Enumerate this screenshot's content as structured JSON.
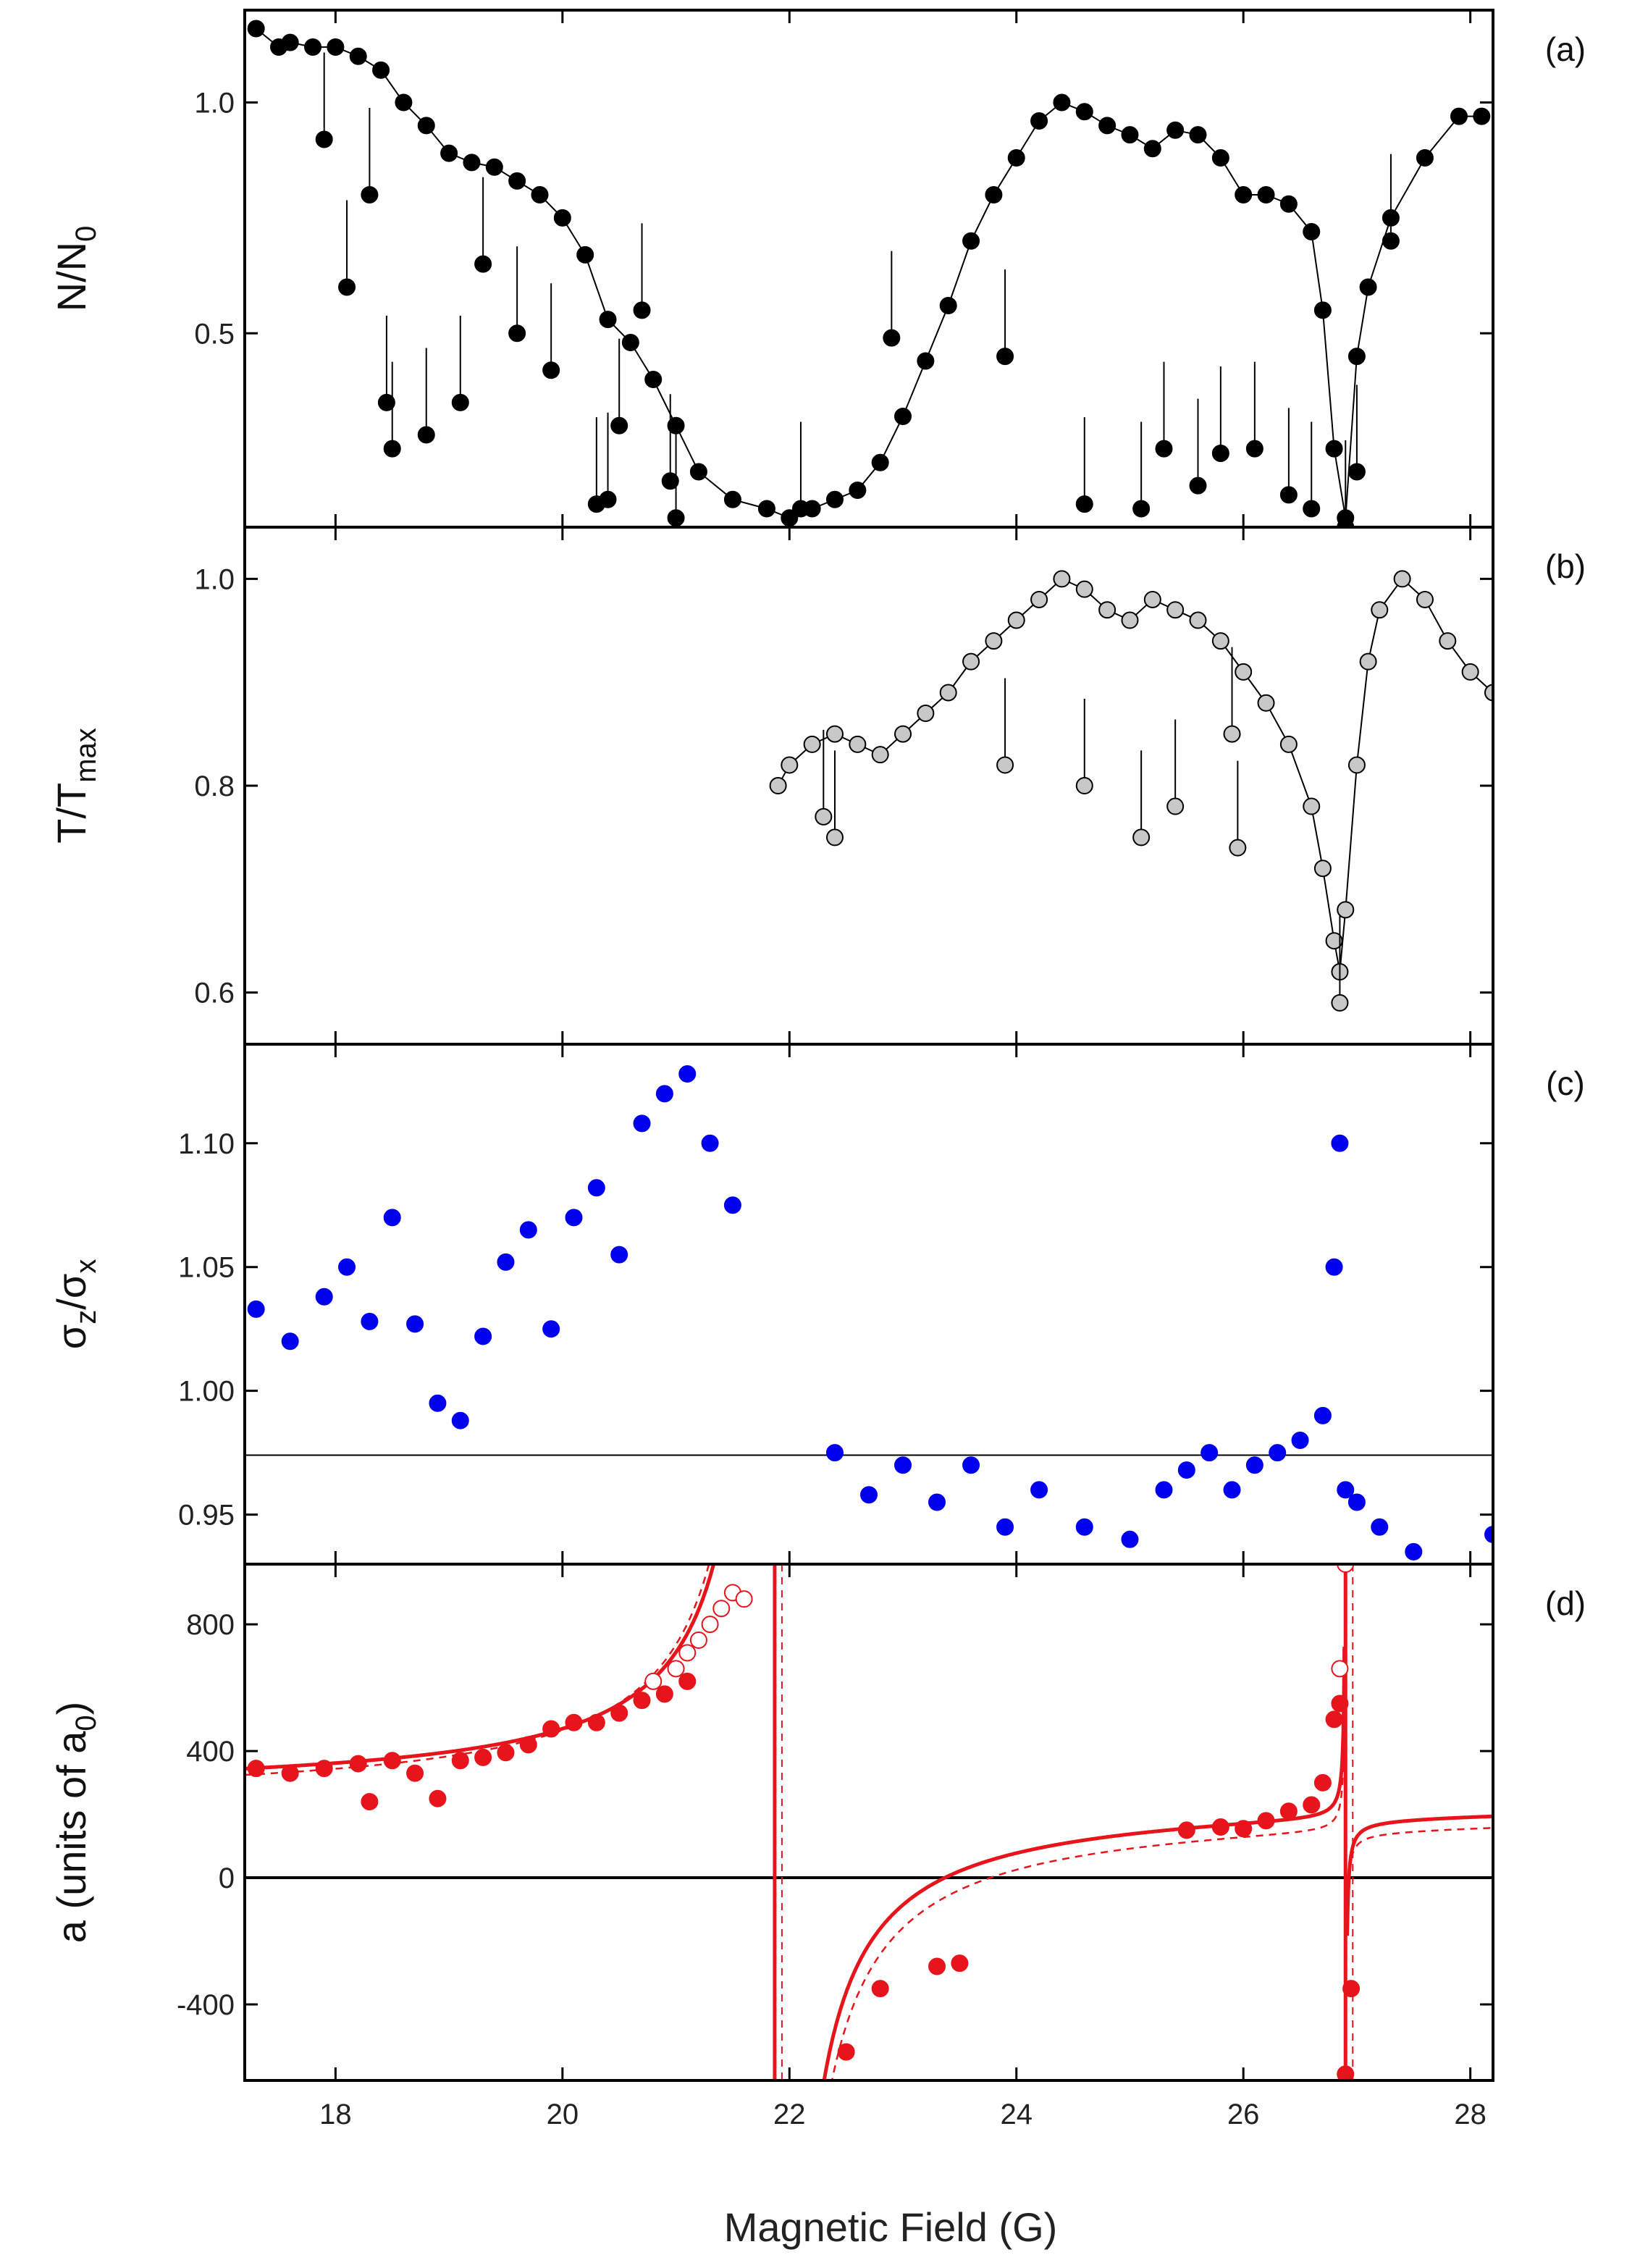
{
  "chart_data": {
    "type": "scatter",
    "xlabel": "Magnetic Field (G)",
    "xlim": [
      17.2,
      28.2
    ],
    "xticks": [
      18,
      20,
      22,
      24,
      26,
      28
    ],
    "xtick_labels": [
      "18",
      "20",
      "22",
      "24",
      "26",
      "28"
    ],
    "panels": [
      {
        "id": "a",
        "tag": "(a)",
        "ylabel_main": "N/N",
        "ylabel_sub": "0",
        "sub_kind": "subscript",
        "ylim": [
          0.08,
          1.2
        ],
        "yticks": [
          0.5,
          1.0
        ],
        "ytick_labels": [
          "0.5",
          "1.0"
        ],
        "marker_color": "#000000",
        "marker_stroke": "#000000",
        "line_color": "#000000",
        "series": [
          {
            "name": "N/N0",
            "x": [
              17.3,
              17.5,
              17.6,
              17.8,
              18.0,
              18.2,
              18.4,
              18.6,
              18.8,
              19.0,
              19.2,
              19.4,
              19.6,
              19.8,
              20.0,
              20.2,
              20.4,
              20.6,
              20.8,
              21.0,
              21.2,
              21.5,
              21.8,
              22.0,
              22.2,
              22.4,
              22.6,
              22.8,
              23.0,
              23.2,
              23.4,
              23.6,
              23.8,
              24.0,
              24.2,
              24.4,
              24.6,
              24.8,
              25.0,
              25.2,
              25.4,
              25.6,
              25.8,
              26.0,
              26.2,
              26.4,
              26.6,
              26.7,
              26.8,
              26.9,
              27.0,
              27.1,
              27.3,
              27.6,
              27.9,
              28.1
            ],
            "y": [
              1.16,
              1.12,
              1.13,
              1.12,
              1.12,
              1.1,
              1.07,
              1.0,
              0.95,
              0.89,
              0.87,
              0.86,
              0.83,
              0.8,
              0.75,
              0.67,
              0.53,
              0.48,
              0.4,
              0.3,
              0.2,
              0.14,
              0.12,
              0.1,
              0.12,
              0.14,
              0.16,
              0.22,
              0.32,
              0.44,
              0.56,
              0.7,
              0.8,
              0.88,
              0.96,
              1.0,
              0.98,
              0.95,
              0.93,
              0.9,
              0.94,
              0.93,
              0.88,
              0.8,
              0.8,
              0.78,
              0.72,
              0.55,
              0.25,
              0.1,
              0.45,
              0.6,
              0.75,
              0.88,
              0.97,
              0.97
            ]
          },
          {
            "name": "dips",
            "x": [
              17.9,
              18.1,
              18.3,
              18.45,
              18.5,
              18.8,
              19.1,
              19.3,
              19.6,
              19.9,
              20.3,
              20.4,
              20.5,
              20.7,
              20.95,
              21.0,
              22.1,
              22.9,
              23.9,
              24.6,
              25.1,
              25.3,
              25.6,
              25.8,
              26.1,
              26.4,
              26.6,
              26.9,
              27.0,
              27.3
            ],
            "y": [
              0.92,
              0.6,
              0.8,
              0.35,
              0.25,
              0.28,
              0.35,
              0.65,
              0.5,
              0.42,
              0.13,
              0.14,
              0.3,
              0.55,
              0.18,
              0.1,
              0.12,
              0.49,
              0.45,
              0.13,
              0.12,
              0.25,
              0.17,
              0.24,
              0.25,
              0.15,
              0.12,
              0.08,
              0.2,
              0.7
            ]
          }
        ]
      },
      {
        "id": "b",
        "tag": "(b)",
        "ylabel_main": "T/T",
        "ylabel_sub": "max",
        "sub_kind": "subscript",
        "ylim": [
          0.55,
          1.05
        ],
        "yticks": [
          0.6,
          0.8,
          1.0
        ],
        "ytick_labels": [
          "0.6",
          "0.8",
          "1.0"
        ],
        "marker_color": "#c8c8c8",
        "marker_stroke": "#000000",
        "line_color": "#000000",
        "series": [
          {
            "name": "T/Tmax",
            "x": [
              21.9,
              22.0,
              22.2,
              22.4,
              22.6,
              22.8,
              23.0,
              23.2,
              23.4,
              23.6,
              23.8,
              24.0,
              24.2,
              24.4,
              24.6,
              24.8,
              25.0,
              25.2,
              25.4,
              25.6,
              25.8,
              26.0,
              26.2,
              26.4,
              26.6,
              26.7,
              26.8,
              26.85,
              26.9,
              27.0,
              27.1,
              27.2,
              27.4,
              27.6,
              27.8,
              28.0,
              28.2
            ],
            "y": [
              0.8,
              0.82,
              0.84,
              0.85,
              0.84,
              0.83,
              0.85,
              0.87,
              0.89,
              0.92,
              0.94,
              0.96,
              0.98,
              1.0,
              0.99,
              0.97,
              0.96,
              0.98,
              0.97,
              0.96,
              0.94,
              0.91,
              0.88,
              0.84,
              0.78,
              0.72,
              0.65,
              0.62,
              0.68,
              0.82,
              0.92,
              0.97,
              1.0,
              0.98,
              0.94,
              0.91,
              0.89
            ]
          },
          {
            "name": "dips",
            "x": [
              22.3,
              22.4,
              23.9,
              24.6,
              25.1,
              25.4,
              25.9,
              25.95,
              26.85
            ],
            "y": [
              0.77,
              0.75,
              0.82,
              0.8,
              0.75,
              0.78,
              0.85,
              0.74,
              0.59
            ]
          }
        ]
      },
      {
        "id": "c",
        "tag": "(c)",
        "ylabel_main": "σ",
        "ylabel_sub": "z",
        "ylabel_mid": "/σ",
        "ylabel_sub2": "x",
        "sub_kind": "subscript",
        "ylim": [
          0.93,
          1.14
        ],
        "yticks": [
          0.95,
          1.0,
          1.05,
          1.1
        ],
        "ytick_labels": [
          "0.95",
          "1.00",
          "1.05",
          "1.10"
        ],
        "hline": 0.974,
        "marker_color": "#0000ee",
        "marker_stroke": "#0000ee",
        "series": [
          {
            "name": "sigma ratio",
            "x": [
              17.3,
              17.6,
              17.9,
              18.1,
              18.3,
              18.5,
              18.7,
              18.9,
              19.1,
              19.3,
              19.5,
              19.7,
              19.9,
              20.1,
              20.3,
              20.5,
              20.7,
              20.9,
              21.1,
              21.3,
              21.5,
              22.4,
              22.7,
              23.0,
              23.3,
              23.6,
              23.9,
              24.2,
              24.6,
              25.0,
              25.3,
              25.5,
              25.7,
              25.9,
              26.1,
              26.3,
              26.5,
              26.7,
              26.8,
              26.85,
              26.9,
              27.0,
              27.2,
              27.5,
              28.2
            ],
            "y": [
              1.033,
              1.02,
              1.038,
              1.05,
              1.028,
              1.07,
              1.027,
              0.995,
              0.988,
              1.022,
              1.052,
              1.065,
              1.025,
              1.07,
              1.082,
              1.055,
              1.108,
              1.12,
              1.128,
              1.1,
              1.075,
              0.975,
              0.958,
              0.97,
              0.955,
              0.97,
              0.945,
              0.96,
              0.945,
              0.94,
              0.96,
              0.968,
              0.975,
              0.96,
              0.97,
              0.975,
              0.98,
              0.99,
              1.05,
              1.1,
              0.96,
              0.955,
              0.945,
              0.935,
              0.942
            ]
          }
        ]
      },
      {
        "id": "d",
        "tag": "(d)",
        "ylabel_main": "a (units of a",
        "ylabel_sub": "0",
        "ylabel_tail": ")",
        "sub_kind": "subscript",
        "ylim": [
          -640,
          990
        ],
        "yticks": [
          -400,
          0,
          400,
          800
        ],
        "ytick_labels": [
          "-400",
          "0",
          "400",
          "800"
        ],
        "zero_line": 0,
        "marker_color": "#e8141c",
        "marker_stroke": "#e8141c",
        "line_color": "#e8141c",
        "resonances": [
          21.87,
          26.9
        ],
        "series": [
          {
            "name": "filled",
            "x": [
              17.3,
              17.6,
              17.9,
              18.2,
              18.3,
              18.5,
              18.7,
              18.9,
              19.1,
              19.3,
              19.5,
              19.7,
              19.9,
              20.1,
              20.3,
              20.5,
              20.7,
              20.9,
              21.1,
              22.5,
              22.8,
              23.3,
              23.5,
              25.5,
              25.8,
              26.0,
              26.2,
              26.4,
              26.6,
              26.7,
              26.8,
              26.85,
              26.9,
              26.95
            ],
            "y": [
              345,
              330,
              345,
              360,
              240,
              370,
              330,
              250,
              370,
              380,
              395,
              420,
              470,
              490,
              490,
              520,
              560,
              580,
              620,
              -550,
              -350,
              -280,
              -270,
              150,
              160,
              155,
              180,
              210,
              230,
              300,
              500,
              550,
              -620,
              -350
            ]
          },
          {
            "name": "open",
            "x": [
              20.8,
              21.0,
              21.1,
              21.2,
              21.3,
              21.4,
              21.5,
              21.6,
              26.85,
              26.9
            ],
            "y": [
              620,
              660,
              710,
              750,
              800,
              850,
              900,
              880,
              660,
              990
            ]
          }
        ]
      }
    ]
  }
}
